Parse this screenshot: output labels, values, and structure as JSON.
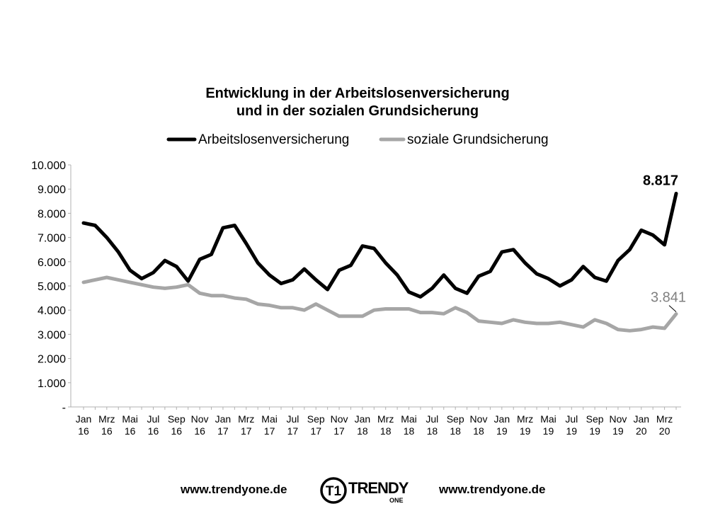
{
  "chart_data": {
    "type": "line",
    "title": [
      "Entwicklung in der Arbeitslosenversicherung",
      "und in der sozialen Grundsicherung"
    ],
    "xlabel": "",
    "ylabel": "",
    "ylim": [
      0,
      10000
    ],
    "ytick_values": [
      0,
      1000,
      2000,
      3000,
      4000,
      5000,
      6000,
      7000,
      8000,
      9000,
      10000
    ],
    "yticks": [
      "-",
      "1.000",
      "2.000",
      "3.000",
      "4.000",
      "5.000",
      "6.000",
      "7.000",
      "8.000",
      "9.000",
      "10.000"
    ],
    "categories": [
      "Jan 16",
      "Feb 16",
      "Mrz 16",
      "Apr 16",
      "Mai 16",
      "Jun 16",
      "Jul 16",
      "Aug 16",
      "Sep 16",
      "Okt 16",
      "Nov 16",
      "Dez 16",
      "Jan 17",
      "Feb 17",
      "Mrz 17",
      "Apr 17",
      "Mai 17",
      "Jun 17",
      "Jul 17",
      "Aug 17",
      "Sep 17",
      "Okt 17",
      "Nov 17",
      "Dez 17",
      "Jan 18",
      "Feb 18",
      "Mrz 18",
      "Apr 18",
      "Mai 18",
      "Jun 18",
      "Jul 18",
      "Aug 18",
      "Sep 18",
      "Okt 18",
      "Nov 18",
      "Dez 18",
      "Jan 19",
      "Feb 19",
      "Mrz 19",
      "Apr 19",
      "Mai 19",
      "Jun 19",
      "Jul 19",
      "Aug 19",
      "Sep 19",
      "Okt 19",
      "Nov 19",
      "Dez 19",
      "Jan 20",
      "Feb 20",
      "Mrz 20",
      "Apr 20"
    ],
    "xtick_labels": [
      {
        "index": 0,
        "line1": "Jan",
        "line2": "16"
      },
      {
        "index": 2,
        "line1": "Mrz",
        "line2": "16"
      },
      {
        "index": 4,
        "line1": "Mai",
        "line2": "16"
      },
      {
        "index": 6,
        "line1": "Jul",
        "line2": "16"
      },
      {
        "index": 8,
        "line1": "Sep",
        "line2": "16"
      },
      {
        "index": 10,
        "line1": "Nov",
        "line2": "16"
      },
      {
        "index": 12,
        "line1": "Jan",
        "line2": "17"
      },
      {
        "index": 14,
        "line1": "Mrz",
        "line2": "17"
      },
      {
        "index": 16,
        "line1": "Mai",
        "line2": "17"
      },
      {
        "index": 18,
        "line1": "Jul",
        "line2": "17"
      },
      {
        "index": 20,
        "line1": "Sep",
        "line2": "17"
      },
      {
        "index": 22,
        "line1": "Nov",
        "line2": "17"
      },
      {
        "index": 24,
        "line1": "Jan",
        "line2": "18"
      },
      {
        "index": 26,
        "line1": "Mrz",
        "line2": "18"
      },
      {
        "index": 28,
        "line1": "Mai",
        "line2": "18"
      },
      {
        "index": 30,
        "line1": "Jul",
        "line2": "18"
      },
      {
        "index": 32,
        "line1": "Sep",
        "line2": "18"
      },
      {
        "index": 34,
        "line1": "Nov",
        "line2": "18"
      },
      {
        "index": 36,
        "line1": "Jan",
        "line2": "19"
      },
      {
        "index": 38,
        "line1": "Mrz",
        "line2": "19"
      },
      {
        "index": 40,
        "line1": "Mai",
        "line2": "19"
      },
      {
        "index": 42,
        "line1": "Jul",
        "line2": "19"
      },
      {
        "index": 44,
        "line1": "Sep",
        "line2": "19"
      },
      {
        "index": 46,
        "line1": "Nov",
        "line2": "19"
      },
      {
        "index": 48,
        "line1": "Jan",
        "line2": "20"
      },
      {
        "index": 50,
        "line1": "Mrz",
        "line2": "20"
      }
    ],
    "series": [
      {
        "name": "Arbeitslosenversicherung",
        "color": "#000000",
        "values": [
          7600,
          7500,
          7000,
          6400,
          5650,
          5300,
          5550,
          6050,
          5800,
          5200,
          6100,
          6300,
          7400,
          7500,
          6750,
          5950,
          5450,
          5100,
          5250,
          5700,
          5250,
          4850,
          5650,
          5850,
          6650,
          6550,
          5950,
          5450,
          4750,
          4550,
          4900,
          5450,
          4900,
          4700,
          5400,
          5600,
          6400,
          6500,
          5950,
          5500,
          5300,
          5000,
          5250,
          5800,
          5350,
          5200,
          6050,
          6500,
          7300,
          7100,
          6700,
          8817
        ],
        "end_label": "8.817"
      },
      {
        "name": "soziale Grundsicherung",
        "color": "#a6a6a6",
        "values": [
          5150,
          5250,
          5350,
          5250,
          5150,
          5050,
          4950,
          4900,
          4950,
          5050,
          4700,
          4600,
          4600,
          4500,
          4450,
          4250,
          4200,
          4100,
          4100,
          4000,
          4250,
          4000,
          3750,
          3750,
          3750,
          4000,
          4050,
          4050,
          4050,
          3900,
          3900,
          3850,
          4100,
          3900,
          3550,
          3500,
          3450,
          3600,
          3500,
          3450,
          3450,
          3500,
          3400,
          3300,
          3600,
          3450,
          3200,
          3150,
          3200,
          3300,
          3250,
          3841
        ],
        "end_label": "3.841"
      }
    ],
    "legend_position": "top",
    "grid": false
  },
  "footer": {
    "left_url": "www.trendyone.de",
    "right_url": "www.trendyone.de",
    "logo_text": "TRENDY",
    "logo_subtext": "ONE",
    "logo_monogram": "T1"
  }
}
